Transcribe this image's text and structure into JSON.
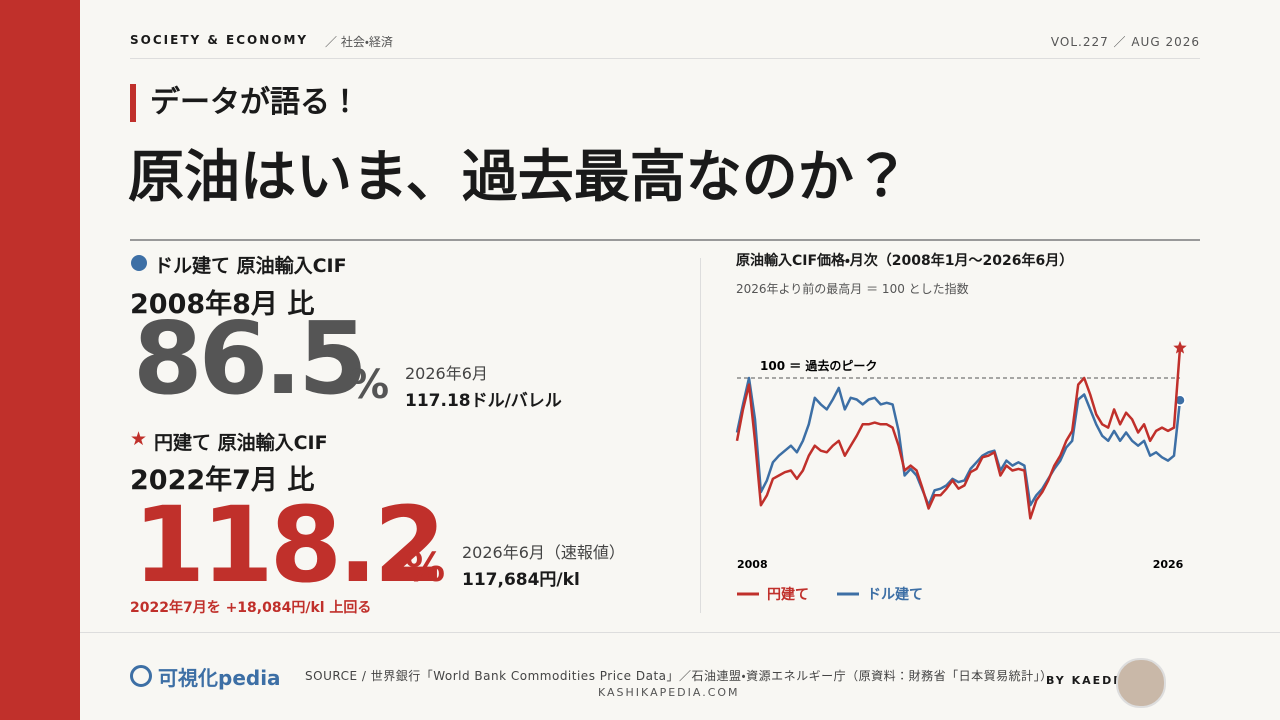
{
  "header": {
    "section": "SOCIETY & ECONOMY",
    "subsection": "／ 社会・経済",
    "issue": "VOL.227 ／ AUG 2026"
  },
  "headline": {
    "kicker": "データが語る！",
    "title": "原油はいま、過去最高なのか？"
  },
  "stats": [
    {
      "label": "ドル建て 原油輸入CIF",
      "basis": "2008年8月 比",
      "value": 86.5,
      "unit": "%",
      "date": "2026年6月",
      "price": "117.18ドル/バレル"
    },
    {
      "label": "円建て 原油輸入CIF",
      "basis": "2022年7月 比",
      "value": 118.2,
      "unit": "%",
      "date": "2026年6月（速報値）",
      "price": "117,684円/kl",
      "note": "2022年7月を +18,084円/kl 上回る"
    }
  ],
  "chart_data": {
    "type": "line",
    "title": "原油輸入CIF価格・月次（2008年1月〜2026年6月）",
    "subtitle": "2026年より前の最高月 ＝ 100 とした指数",
    "reference": {
      "value": 100,
      "label": "100 ＝ 過去のピーク"
    },
    "x": [
      2008,
      2008.25,
      2008.5,
      2008.75,
      2009,
      2009.25,
      2009.5,
      2009.75,
      2010,
      2010.25,
      2010.5,
      2010.75,
      2011,
      2011.25,
      2011.5,
      2011.75,
      2012,
      2012.25,
      2012.5,
      2012.75,
      2013,
      2013.25,
      2013.5,
      2013.75,
      2014,
      2014.25,
      2014.5,
      2014.75,
      2015,
      2015.25,
      2015.5,
      2015.75,
      2016,
      2016.25,
      2016.5,
      2016.75,
      2017,
      2017.25,
      2017.5,
      2017.75,
      2018,
      2018.25,
      2018.5,
      2018.75,
      2019,
      2019.25,
      2019.5,
      2019.75,
      2020,
      2020.25,
      2020.5,
      2020.75,
      2021,
      2021.25,
      2021.5,
      2021.75,
      2022,
      2022.25,
      2022.5,
      2022.75,
      2023,
      2023.25,
      2023.5,
      2023.75,
      2024,
      2024.25,
      2024.5,
      2024.75,
      2025,
      2025.25,
      2025.5,
      2025.75,
      2026,
      2026.25,
      2026.5
    ],
    "xlim": [
      2008,
      2026.5
    ],
    "xticks": [
      2008,
      2026
    ],
    "ylim": [
      8,
      123
    ],
    "series": [
      {
        "name": "円建て",
        "color": "#c0302b",
        "values": [
          62,
          81,
          96,
          62,
          23,
          29,
          39,
          41,
          43,
          44,
          39,
          44,
          53,
          59,
          56,
          55,
          59,
          62,
          53,
          59,
          65,
          72,
          72,
          73,
          72,
          72,
          70,
          59,
          44,
          47,
          44,
          33,
          21,
          29,
          29,
          33,
          38,
          33,
          35,
          43,
          45,
          52,
          53,
          55,
          41,
          47,
          44,
          45,
          44,
          15,
          26,
          31,
          38,
          47,
          53,
          62,
          68,
          96,
          100,
          90,
          78,
          72,
          70,
          81,
          72,
          79,
          75,
          67,
          72,
          62,
          68,
          70,
          68,
          70,
          118.2
        ]
      },
      {
        "name": "ドル建て",
        "color": "#3d6fa5",
        "values": [
          67,
          84,
          100,
          75,
          31,
          38,
          49,
          53,
          56,
          59,
          55,
          62,
          72,
          88,
          84,
          81,
          87,
          94,
          81,
          88,
          87,
          84,
          87,
          88,
          84,
          85,
          84,
          68,
          41,
          45,
          41,
          32,
          23,
          32,
          33,
          35,
          39,
          37,
          38,
          45,
          49,
          53,
          55,
          56,
          44,
          50,
          47,
          49,
          47,
          23,
          29,
          33,
          39,
          45,
          50,
          58,
          62,
          87,
          90,
          81,
          72,
          65,
          62,
          68,
          62,
          67,
          62,
          59,
          62,
          53,
          55,
          52,
          50,
          53,
          86.5
        ]
      }
    ]
  },
  "footer": {
    "logo": "可視化pedia",
    "source": "SOURCE / 世界銀行「World Bank Commodities Price Data」／石油連盟・資源エネルギー庁（原資料：財務省「日本貿易統計」）",
    "site": "KASHIKAPEDIA.COM",
    "author": "BY KAEDE"
  }
}
